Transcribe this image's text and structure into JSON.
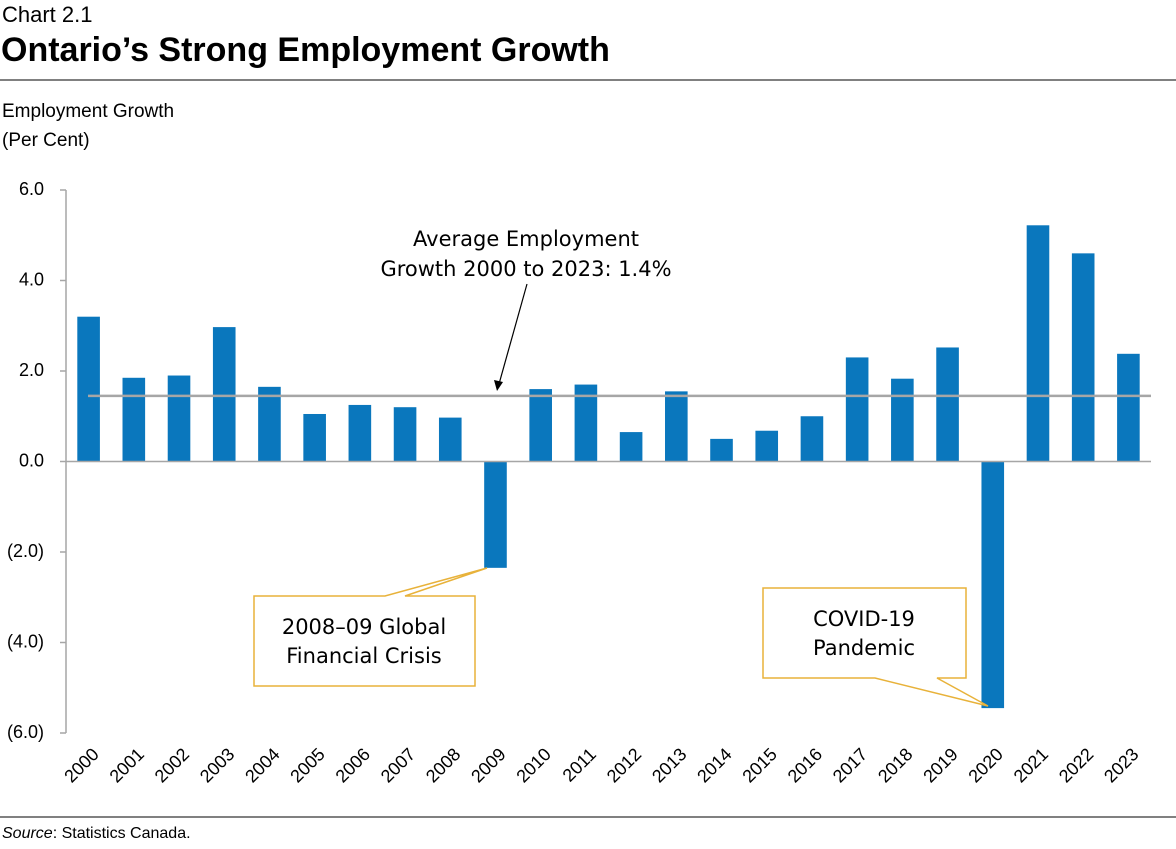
{
  "chart_data": {
    "type": "bar",
    "kicker": "Chart 2.1",
    "title": "Ontario’s Strong Employment Growth",
    "y_label": [
      "Employment Growth",
      "(Per Cent)"
    ],
    "categories": [
      "2000",
      "2001",
      "2002",
      "2003",
      "2004",
      "2005",
      "2006",
      "2007",
      "2008",
      "2009",
      "2010",
      "2011",
      "2012",
      "2013",
      "2014",
      "2015",
      "2016",
      "2017",
      "2018",
      "2019",
      "2020",
      "2021",
      "2022",
      "2023"
    ],
    "values": [
      3.2,
      1.85,
      1.9,
      2.97,
      1.65,
      1.05,
      1.25,
      1.2,
      0.97,
      -2.35,
      1.6,
      1.7,
      0.65,
      1.55,
      0.5,
      0.68,
      1.0,
      2.3,
      1.83,
      2.52,
      -5.45,
      5.22,
      4.6,
      2.38
    ],
    "color": "#0a77bd",
    "average_line": 1.45,
    "average_color": "#a6a6a6",
    "ylim": [
      -6,
      6
    ],
    "yticks": [
      {
        "value": 6,
        "label": "6.0"
      },
      {
        "value": 4,
        "label": "4.0"
      },
      {
        "value": 2,
        "label": "2.0"
      },
      {
        "value": 0,
        "label": "0.0"
      },
      {
        "value": -2,
        "label": "(2.0)"
      },
      {
        "value": -4,
        "label": "(4.0)"
      },
      {
        "value": -6,
        "label": "(6.0)"
      }
    ],
    "grid": false,
    "annotations": {
      "average": [
        "Average Employment",
        "Growth 2000 to 2023: 1.4%"
      ],
      "crisis": [
        "2008–09 Global",
        "Financial Crisis"
      ],
      "covid": [
        "COVID-19",
        "Pandemic"
      ]
    },
    "source_label": "Source",
    "source_text": ": Statistics Canada."
  }
}
